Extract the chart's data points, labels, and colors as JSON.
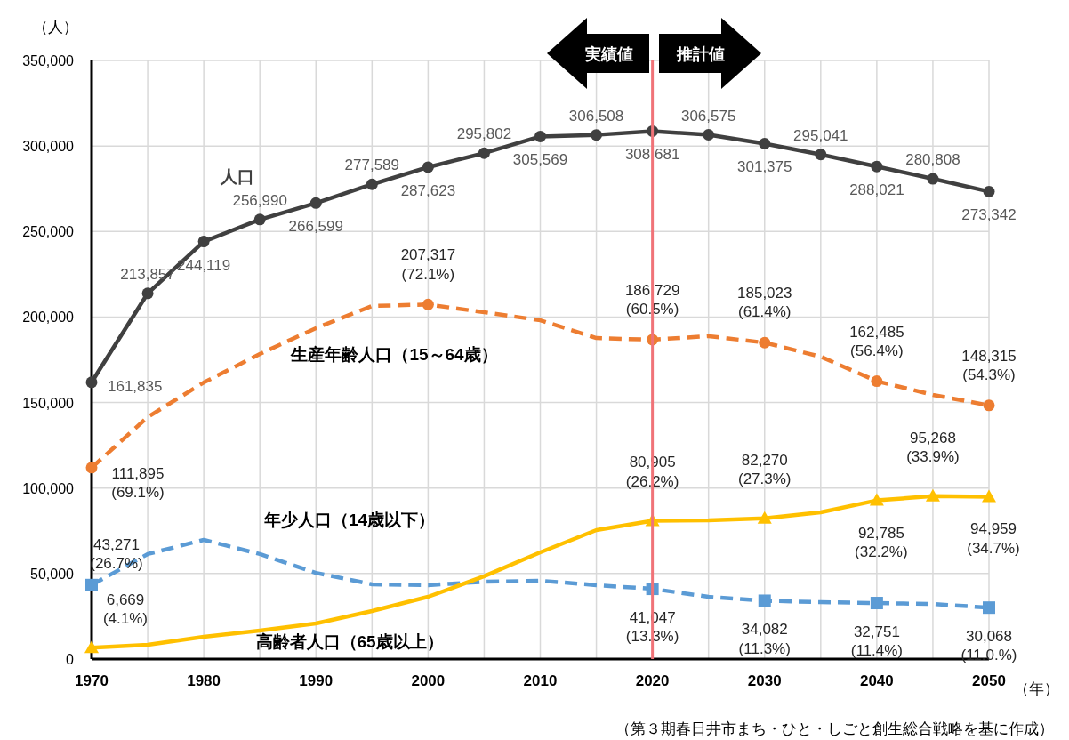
{
  "chart_data": {
    "type": "line",
    "ylabel": "（人）",
    "xlabel": "（年）",
    "x": [
      1970,
      1975,
      1980,
      1985,
      1990,
      1995,
      2000,
      2005,
      2010,
      2015,
      2020,
      2025,
      2030,
      2035,
      2040,
      2045,
      2050
    ],
    "xlim": [
      1970,
      2050
    ],
    "xticks": [
      1970,
      {
        "value": 1975,
        "label": null
      },
      1980,
      {
        "value": 1985,
        "label": null
      },
      1990,
      {
        "value": 1995,
        "label": null
      },
      2000,
      {
        "value": 2005,
        "label": null
      },
      2010,
      {
        "value": 2015,
        "label": null
      },
      2020,
      {
        "value": 2025,
        "label": null
      },
      2030,
      {
        "value": 2035,
        "label": null
      },
      2040,
      {
        "value": 2045,
        "label": null
      },
      2050
    ],
    "ylim": [
      0,
      350000
    ],
    "yticks": [
      {
        "value": 0,
        "label": "0"
      },
      {
        "value": 50000,
        "label": "50,000"
      },
      {
        "value": 100000,
        "label": "100,000"
      },
      {
        "value": 150000,
        "label": "150,000"
      },
      {
        "value": 200000,
        "label": "200,000"
      },
      {
        "value": 250000,
        "label": "250,000"
      },
      {
        "value": 300000,
        "label": "300,000"
      },
      {
        "value": 350000,
        "label": "350,000"
      }
    ],
    "grid": true,
    "series": [
      {
        "name": "人口",
        "color": "#404040",
        "marker": "circle",
        "line_style": "solid",
        "values": [
          161835,
          213857,
          244119,
          256990,
          266599,
          277589,
          287623,
          295802,
          305569,
          306508,
          308681,
          306575,
          301375,
          295041,
          288021,
          280808,
          273342
        ],
        "value_labels": [
          "161,835",
          "213,857",
          "244,119",
          "256,990",
          "266,599",
          "277,589",
          "287,623",
          "295,802",
          "305,569",
          "306,508",
          "308,681",
          "306,575",
          "301,375",
          "295,041",
          "288,021",
          "280,808",
          "273,342"
        ]
      },
      {
        "name": "生産年齢人口（15～64歳）",
        "color": "#ed7d31",
        "line_style": "dashed",
        "values": [
          111895,
          141500,
          161700,
          178400,
          193500,
          206500,
          207317,
          202800,
          198100,
          187700,
          186729,
          188800,
          185023,
          176800,
          162485,
          154500,
          148315
        ]
      },
      {
        "name": "年少人口（14歳以下）",
        "color": "#5b9bd5",
        "line_style": "dashed",
        "values": [
          43271,
          61400,
          69700,
          61400,
          50400,
          43700,
          43200,
          45200,
          45800,
          43200,
          41047,
          36400,
          34082,
          33300,
          32751,
          32200,
          30068
        ]
      },
      {
        "name": "高齢者人口（65歳以上）",
        "color": "#ffc000",
        "line_style": "solid",
        "values": [
          6669,
          8300,
          13000,
          16600,
          20800,
          28100,
          36400,
          48400,
          62400,
          75400,
          80905,
          81100,
          82270,
          85800,
          92785,
          95268,
          94959
        ]
      },
      {
        "type": "scatter",
        "color": "#ed7d31",
        "marker": "circle",
        "x": [
          1970,
          2000,
          2020,
          2030,
          2040,
          2050
        ],
        "values": [
          111895,
          207317,
          186729,
          185023,
          162485,
          148315
        ],
        "value_labels": [
          "111,895\n(69.1%)",
          "207,317\n(72.1%)",
          "186,729\n(60.5%)",
          "185,023\n(61.4%)",
          "162,485\n(56.4%)",
          "148,315\n(54.3%)"
        ]
      },
      {
        "type": "scatter",
        "color": "#5b9bd5",
        "marker": "square",
        "x": [
          1970,
          2020,
          2030,
          2040,
          2050
        ],
        "values": [
          43271,
          41047,
          34082,
          32751,
          30068
        ],
        "value_labels": [
          "43,271\n(26.7%)",
          "41,047\n(13.3%)",
          "34,082\n(11.3%)",
          "32,751\n(11.4%)",
          "30,068\n(11.0.%)"
        ]
      },
      {
        "type": "scatter",
        "color": "#ffc000",
        "marker": "triangle",
        "x": [
          1970,
          2020,
          2030,
          2040,
          2045,
          2050
        ],
        "values": [
          6669,
          80905,
          82270,
          92785,
          95268,
          94959
        ],
        "value_labels": [
          "6,669\n(4.1%)",
          "80,905\n(26.2%)",
          "82,270\n(27.3%)",
          "92,785\n(32.2%)",
          "95,268\n(33.9%)",
          "94,959\n(34.7%)"
        ]
      }
    ],
    "ref_lines": [
      {
        "axis": "x",
        "value": 2020,
        "color": "#f07378"
      }
    ],
    "annotations": [
      "実績値",
      "推計値",
      "（第３期春日井市まち・ひと・しごと創生総合戦略を基に作成）"
    ]
  }
}
